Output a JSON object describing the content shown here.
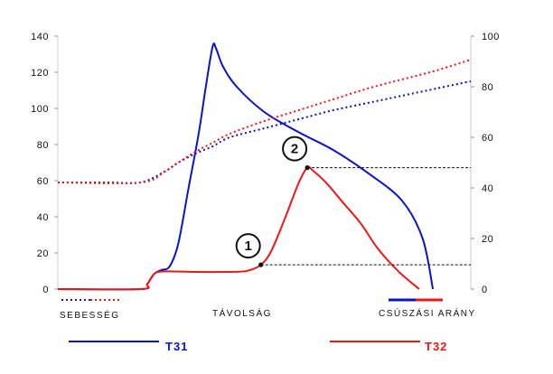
{
  "chart_data": {
    "type": "line",
    "title": "",
    "x_axis": {
      "label": "TÁVOLSÁG",
      "ticks": []
    },
    "y_axis_left": {
      "ticks": [
        0,
        20,
        40,
        60,
        80,
        100,
        120,
        140
      ],
      "ylim": [
        0,
        140
      ]
    },
    "y_axis_right": {
      "ticks": [
        0,
        20,
        40,
        60,
        80,
        100
      ],
      "ylim": [
        0,
        100
      ]
    },
    "grid": false,
    "legend": {
      "speed_label": "SEBESSÉG",
      "slip_label": "CSÚSZÁSI ARÁNY",
      "placement": "bottom"
    },
    "series": [
      {
        "name": "T31",
        "color": "#0a14c8",
        "speed": [
          [
            0,
            59
          ],
          [
            30,
            59
          ],
          [
            48,
            59
          ],
          [
            62,
            65
          ],
          [
            70,
            70
          ],
          [
            80,
            75
          ],
          [
            90,
            79
          ],
          [
            100,
            84
          ],
          [
            120,
            89
          ],
          [
            140,
            94
          ],
          [
            160,
            99
          ],
          [
            180,
            103
          ],
          [
            200,
            107
          ],
          [
            220,
            111
          ],
          [
            240,
            115
          ]
        ],
        "slip": [
          [
            0,
            0
          ],
          [
            48,
            0
          ],
          [
            52,
            2
          ],
          [
            56,
            6
          ],
          [
            60,
            7.5
          ],
          [
            65,
            9
          ],
          [
            70,
            18
          ],
          [
            76,
            40
          ],
          [
            82,
            62
          ],
          [
            86,
            80
          ],
          [
            90,
            96
          ],
          [
            92,
            95
          ],
          [
            96,
            88
          ],
          [
            104,
            80
          ],
          [
            120,
            70
          ],
          [
            140,
            62
          ],
          [
            160,
            55
          ],
          [
            180,
            46
          ],
          [
            200,
            35
          ],
          [
            212,
            20
          ],
          [
            218,
            0
          ]
        ]
      },
      {
        "name": "T32",
        "color": "#f01616",
        "speed": [
          [
            0,
            59
          ],
          [
            48,
            59
          ],
          [
            62,
            65
          ],
          [
            70,
            70
          ],
          [
            80,
            76
          ],
          [
            90,
            81
          ],
          [
            100,
            86
          ],
          [
            120,
            93
          ],
          [
            140,
            99
          ],
          [
            160,
            105
          ],
          [
            180,
            111
          ],
          [
            200,
            116
          ],
          [
            220,
            121
          ],
          [
            240,
            127
          ]
        ],
        "slip": [
          [
            0,
            0
          ],
          [
            48,
            0
          ],
          [
            52,
            2
          ],
          [
            56,
            6
          ],
          [
            62,
            7
          ],
          [
            80,
            6.8
          ],
          [
            100,
            6.8
          ],
          [
            110,
            7.2
          ],
          [
            118,
            9.6
          ],
          [
            124,
            15
          ],
          [
            132,
            28
          ],
          [
            140,
            42
          ],
          [
            145,
            48
          ],
          [
            148,
            47
          ],
          [
            156,
            42
          ],
          [
            166,
            34
          ],
          [
            176,
            26
          ],
          [
            186,
            16
          ],
          [
            198,
            7
          ],
          [
            210,
            0
          ]
        ]
      }
    ],
    "markers": [
      {
        "label": "1",
        "x": 118,
        "y": 9.6
      },
      {
        "label": "2",
        "x": 145,
        "y": 48
      }
    ]
  }
}
